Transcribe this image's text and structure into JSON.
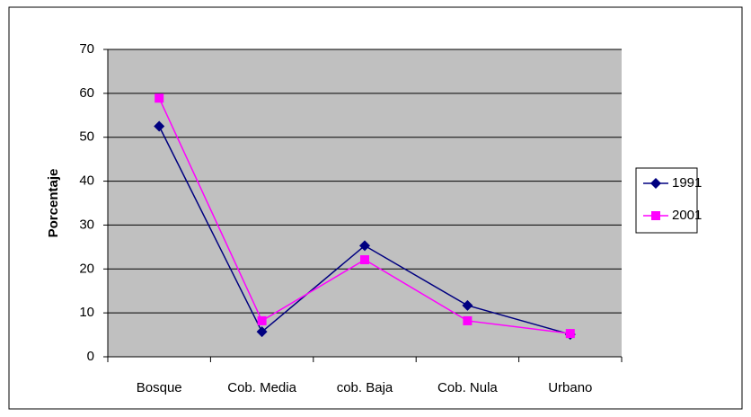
{
  "chart_data": {
    "type": "line",
    "ylabel": "Porcentaje",
    "categories": [
      "Bosque",
      "Cob. Media",
      "cob. Baja",
      "Cob. Nula",
      "Urbano"
    ],
    "series": [
      {
        "name": "1991",
        "color": "#000080",
        "marker": "diamond",
        "values": [
          52.5,
          5.7,
          25.3,
          11.7,
          5.1
        ]
      },
      {
        "name": "2001",
        "color": "#ff00ff",
        "marker": "square",
        "values": [
          58.9,
          8.2,
          22.1,
          8.2,
          5.3
        ]
      }
    ],
    "ylim": [
      0,
      70
    ],
    "yticks": [
      0,
      10,
      20,
      30,
      40,
      50,
      60,
      70
    ],
    "grid": true,
    "legend": "right"
  }
}
